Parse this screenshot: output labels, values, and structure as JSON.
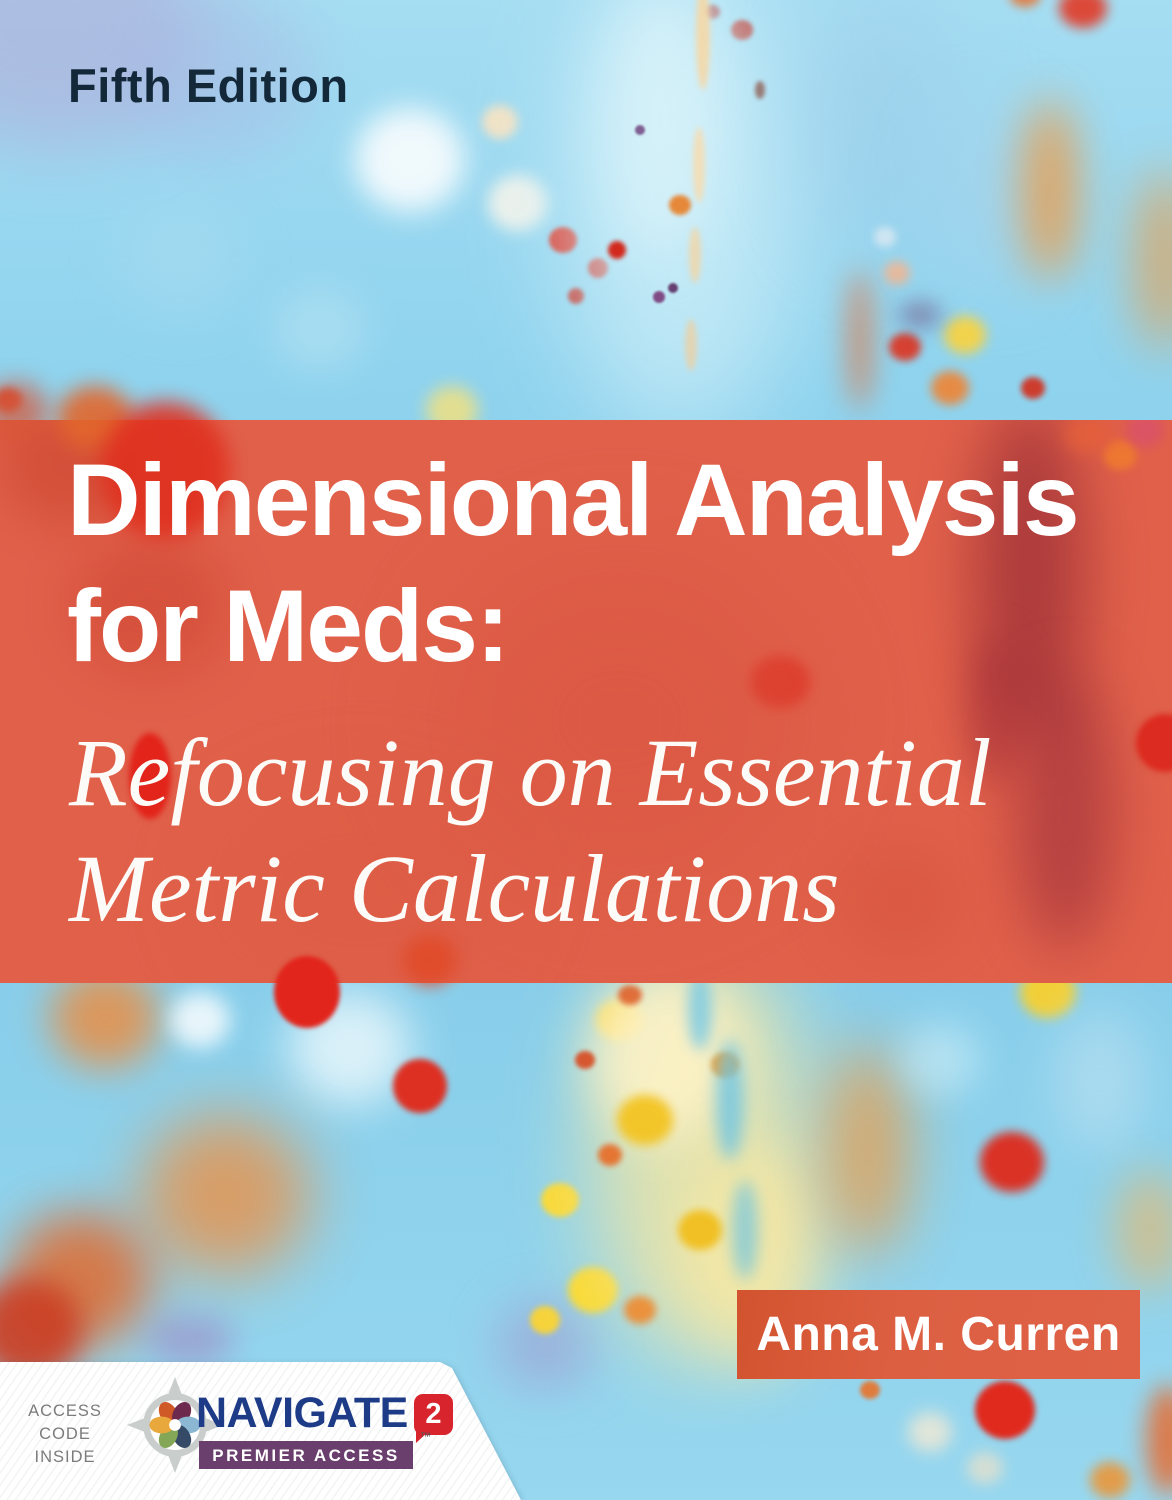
{
  "edition": "Fifth Edition",
  "title": "Dimensional Analysis for Meds:",
  "subtitle": "Refocusing on Essential Metric Calculations",
  "author": "Anna M. Curren",
  "footer": {
    "access_note": "ACCESS\nCODE\nINSIDE",
    "brand": "NAVIGATE",
    "brand_number": "2",
    "tagline": "PREMIER ACCESS",
    "trademark": "™"
  },
  "colors": {
    "sky_blue": "#8fd3ee",
    "title_band_coral": "#e0604a",
    "author_block_coral": "#dc5f42",
    "edition_navy": "#13293a",
    "navigate_blue": "#1d3b87",
    "badge_red": "#d7242d",
    "premier_purple": "#6a3e6d",
    "access_note_gray": "#7b7b7b",
    "title_text": "#ffffff"
  }
}
